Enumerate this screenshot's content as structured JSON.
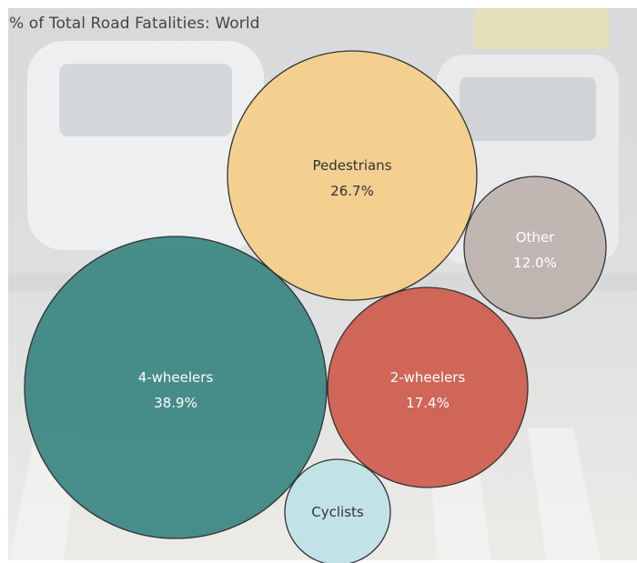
{
  "chart_data": {
    "type": "bubble",
    "title": "% of Total Road Fatalities: World",
    "categories": [
      "4-wheelers",
      "Pedestrians",
      "2-wheelers",
      "Other",
      "Cyclists"
    ],
    "values": [
      38.9,
      26.7,
      17.4,
      12.0,
      null
    ],
    "value_labels": [
      "38.9%",
      "26.7%",
      "17.4%",
      "12.0%",
      ""
    ],
    "legend": "none",
    "grid": false
  },
  "colors": {
    "4-wheelers": "#3a8582",
    "Pedestrians": "#f4cd8a",
    "2-wheelers": "#cd5d4e",
    "Other": "#bcb3ad",
    "Cyclists": "#bde2e6",
    "outline": "#333333",
    "light_text": "#ffffff",
    "dark_text": "#333333"
  }
}
